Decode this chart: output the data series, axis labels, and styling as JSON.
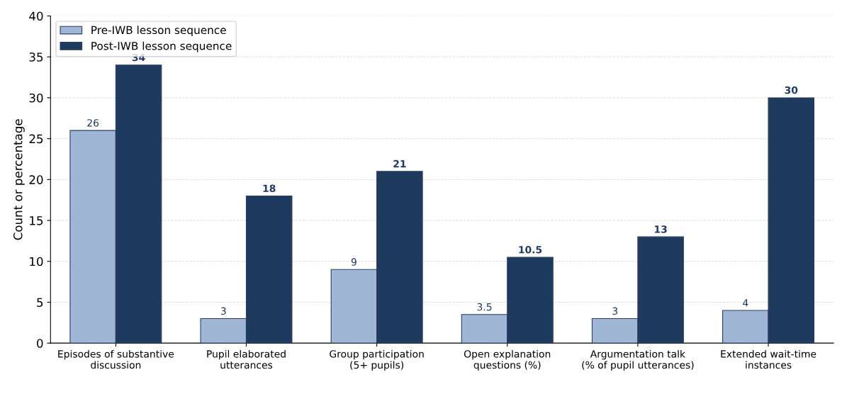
{
  "chart_data": {
    "type": "bar",
    "ylabel": "Count or percentage",
    "categories": [
      "Episodes of substantive\ndiscussion",
      "Pupil elaborated\nutterances",
      "Group participation\n(5+ pupils)",
      "Open explanation\nquestions (%)",
      "Argumentation talk\n(% of pupil utterances)",
      "Extended wait-time\ninstances"
    ],
    "series": [
      {
        "name": "Pre-IWB lesson sequence",
        "color": "#9fb6d6",
        "values": [
          26,
          3,
          9,
          3.5,
          3,
          4
        ]
      },
      {
        "name": "Post-IWB lesson sequence",
        "color": "#1f3a5f",
        "values": [
          34,
          18,
          21,
          10.5,
          13,
          30
        ]
      }
    ],
    "ylim": [
      0,
      40
    ],
    "yticks": [
      0,
      5,
      10,
      15,
      20,
      25,
      30,
      35,
      40
    ],
    "grid": "y",
    "legend": "top left",
    "data_labels": true
  }
}
